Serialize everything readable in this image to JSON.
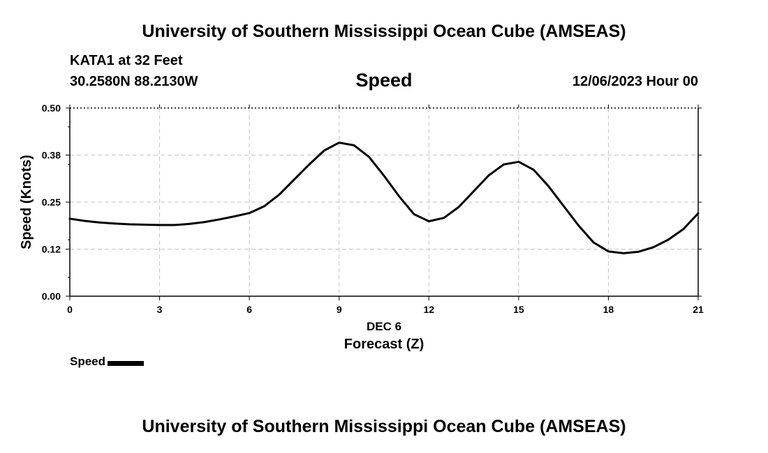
{
  "header": {
    "title": "University of Southern Mississippi Ocean Cube (AMSEAS)",
    "station": "KATA1 at 32 Feet",
    "coordinates": "30.2580N  88.2130W",
    "datetime": "12/06/2023 Hour 00"
  },
  "footer": {
    "title": "University of Southern Mississippi Ocean Cube (AMSEAS)"
  },
  "legend": {
    "label": "Speed",
    "color": "#000000"
  },
  "chart_data": {
    "type": "line",
    "title": "Speed",
    "xlabel": "Forecast (Z)",
    "xsublabel": "DEC 6",
    "ylabel": "Speed (Knots)",
    "xlim": [
      0,
      21
    ],
    "ylim": [
      0,
      0.5
    ],
    "xticks": [
      0,
      3,
      6,
      9,
      12,
      15,
      18,
      21
    ],
    "yticks": [
      0.0,
      0.125,
      0.25,
      0.375,
      0.5
    ],
    "ytick_labels": [
      "0.00",
      "0.12",
      "0.25",
      "0.38",
      "0.50"
    ],
    "grid": true,
    "legend_position": "bottom-left",
    "series": [
      {
        "name": "Speed",
        "color": "#000000",
        "x": [
          0,
          0.5,
          1,
          1.5,
          2,
          2.5,
          3,
          3.5,
          4,
          4.5,
          5,
          5.5,
          6,
          6.5,
          7,
          7.5,
          8,
          8.5,
          9,
          9.5,
          10,
          10.5,
          11,
          11.5,
          12,
          12.5,
          13,
          13.5,
          14,
          14.5,
          15,
          15.5,
          16,
          16.5,
          17,
          17.5,
          18,
          18.5,
          19,
          19.5,
          20,
          20.5,
          21
        ],
        "values": [
          0.206,
          0.2,
          0.196,
          0.193,
          0.191,
          0.19,
          0.189,
          0.189,
          0.192,
          0.197,
          0.204,
          0.212,
          0.221,
          0.239,
          0.27,
          0.31,
          0.35,
          0.387,
          0.408,
          0.401,
          0.37,
          0.32,
          0.266,
          0.218,
          0.199,
          0.208,
          0.237,
          0.279,
          0.321,
          0.35,
          0.357,
          0.336,
          0.292,
          0.24,
          0.188,
          0.143,
          0.119,
          0.114,
          0.118,
          0.13,
          0.15,
          0.178,
          0.22
        ]
      }
    ]
  }
}
